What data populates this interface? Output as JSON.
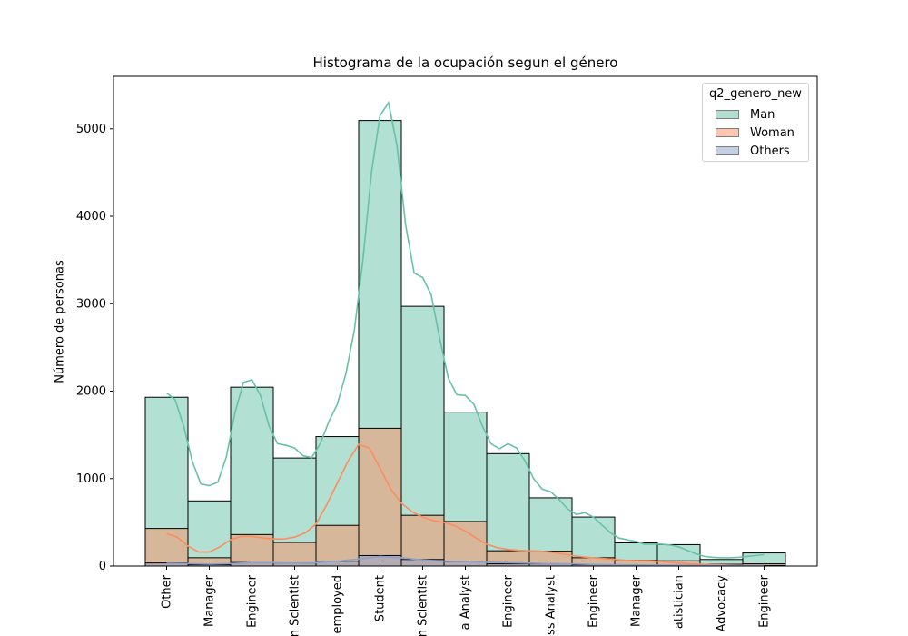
{
  "chart_data": {
    "type": "bar",
    "title": "Histograma de la ocupación segun el género",
    "xlabel": "",
    "ylabel": "Número de personas",
    "ylim": [
      0,
      5600
    ],
    "yticks": [
      0,
      1000,
      2000,
      3000,
      4000,
      5000
    ],
    "categories": [
      "Other",
      "Manager",
      "Engineer",
      "n Scientist",
      "employed",
      "Student",
      "n Scientist",
      "a Analyst",
      "Engineer",
      "ss Analyst",
      "Engineer",
      "Manager",
      "atistician",
      "Advocacy",
      "Engineer"
    ],
    "legend": {
      "title": "q2_genero_new",
      "placement": "top-right",
      "entries": [
        "Man",
        "Woman",
        "Others"
      ]
    },
    "series": [
      {
        "name": "Man",
        "color": "#66c2a5",
        "values": [
          1930,
          745,
          2045,
          1235,
          1480,
          5095,
          2970,
          1760,
          1285,
          780,
          560,
          265,
          245,
          75,
          150
        ]
      },
      {
        "name": "Woman",
        "color": "#fc8d62",
        "values": [
          430,
          95,
          360,
          270,
          465,
          1575,
          580,
          510,
          175,
          170,
          95,
          65,
          60,
          20,
          25
        ]
      },
      {
        "name": "Others",
        "color": "#8da0cb",
        "values": [
          35,
          15,
          40,
          35,
          55,
          120,
          75,
          50,
          25,
          25,
          15,
          10,
          10,
          5,
          5
        ]
      }
    ],
    "kde": [
      {
        "name": "Man",
        "x": [
          0,
          0.2,
          0.4,
          0.6,
          0.8,
          1.0,
          1.2,
          1.4,
          1.6,
          1.8,
          2.0,
          2.2,
          2.4,
          2.6,
          2.8,
          3.0,
          3.2,
          3.4,
          3.6,
          3.8,
          4.0,
          4.2,
          4.4,
          4.6,
          4.8,
          5.0,
          5.2,
          5.4,
          5.6,
          5.8,
          6.0,
          6.2,
          6.4,
          6.6,
          6.8,
          7.0,
          7.2,
          7.4,
          7.6,
          7.8,
          8.0,
          8.2,
          8.4,
          8.6,
          8.8,
          9.0,
          9.2,
          9.4,
          9.6,
          9.8,
          10.0,
          10.2,
          10.4,
          10.6,
          10.8,
          11.0,
          11.2,
          11.4,
          11.6,
          11.8,
          12.0,
          12.2,
          12.4,
          12.6,
          12.8,
          13.0,
          13.2,
          13.4,
          13.6,
          13.8,
          14.0
        ],
        "y": [
          1980,
          1900,
          1600,
          1200,
          940,
          920,
          960,
          1250,
          1750,
          2100,
          2130,
          1950,
          1600,
          1400,
          1380,
          1350,
          1260,
          1240,
          1400,
          1650,
          1850,
          2200,
          2700,
          3500,
          4500,
          5150,
          5300,
          4800,
          3900,
          3350,
          3300,
          3100,
          2600,
          2150,
          1960,
          1950,
          1850,
          1600,
          1400,
          1340,
          1400,
          1350,
          1200,
          1000,
          880,
          850,
          760,
          650,
          590,
          610,
          560,
          470,
          380,
          320,
          300,
          280,
          250,
          250,
          250,
          240,
          220,
          180,
          140,
          110,
          100,
          95,
          95,
          100,
          110,
          120,
          130
        ]
      },
      {
        "name": "Woman",
        "x": [
          0,
          0.25,
          0.5,
          0.75,
          1.0,
          1.25,
          1.5,
          1.75,
          2.0,
          2.25,
          2.5,
          2.75,
          3.0,
          3.25,
          3.5,
          3.75,
          4.0,
          4.25,
          4.5,
          4.75,
          5.0,
          5.25,
          5.5,
          5.75,
          6.0,
          6.25,
          6.5,
          6.75,
          7.0,
          7.25,
          7.5,
          7.75,
          8.0,
          8.25,
          8.5,
          8.75,
          9.0,
          9.25,
          9.5,
          9.75,
          10.0,
          10.25,
          10.5,
          10.75,
          11.0,
          11.25,
          11.5,
          11.75,
          12.0,
          12.25,
          12.5,
          12.75,
          13.0,
          13.25,
          13.5,
          13.75,
          14.0
        ],
        "y": [
          370,
          330,
          230,
          160,
          160,
          220,
          300,
          340,
          340,
          320,
          310,
          310,
          330,
          380,
          480,
          700,
          950,
          1200,
          1390,
          1350,
          1120,
          880,
          720,
          620,
          560,
          520,
          500,
          460,
          400,
          320,
          250,
          210,
          190,
          180,
          175,
          170,
          160,
          140,
          120,
          105,
          95,
          85,
          75,
          65,
          60,
          60,
          55,
          45,
          35,
          25,
          20,
          15,
          12,
          10,
          8,
          6,
          5
        ]
      },
      {
        "name": "Others",
        "x": [
          0,
          0.5,
          1.0,
          1.5,
          2.0,
          2.5,
          3.0,
          3.5,
          4.0,
          4.5,
          5.0,
          5.5,
          6.0,
          6.5,
          7.0,
          7.5,
          8.0,
          8.5,
          9.0,
          9.5,
          10.0,
          10.5,
          11.0,
          11.5,
          12.0,
          12.5,
          13.0,
          13.5,
          14.0
        ],
        "y": [
          30,
          28,
          22,
          28,
          38,
          38,
          34,
          38,
          55,
          80,
          110,
          95,
          70,
          55,
          50,
          44,
          38,
          32,
          28,
          24,
          18,
          14,
          12,
          10,
          9,
          7,
          5,
          4,
          3
        ]
      }
    ]
  }
}
